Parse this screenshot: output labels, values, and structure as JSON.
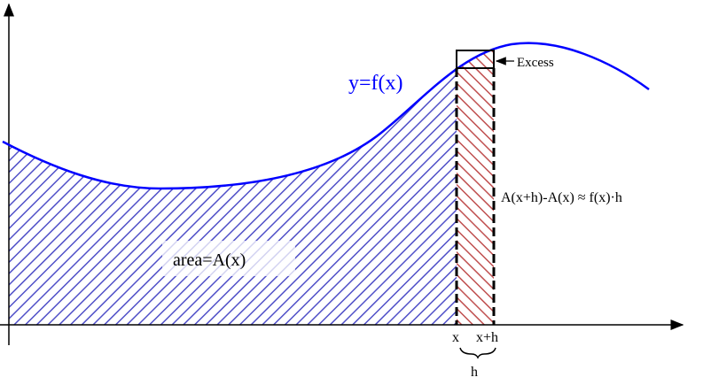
{
  "labels": {
    "curve": "y=f(x)",
    "excess": "Excess",
    "difference": "A(x+h)-A(x) ≈ f(x)·h",
    "area": "area=A(x)",
    "x_tick": "x",
    "xh_tick": "x+h",
    "h": "h"
  },
  "colors": {
    "curve": "#0000ff",
    "area_hatch": "#5050c8",
    "strip_hatch": "#c05050",
    "axis": "#000000"
  }
}
